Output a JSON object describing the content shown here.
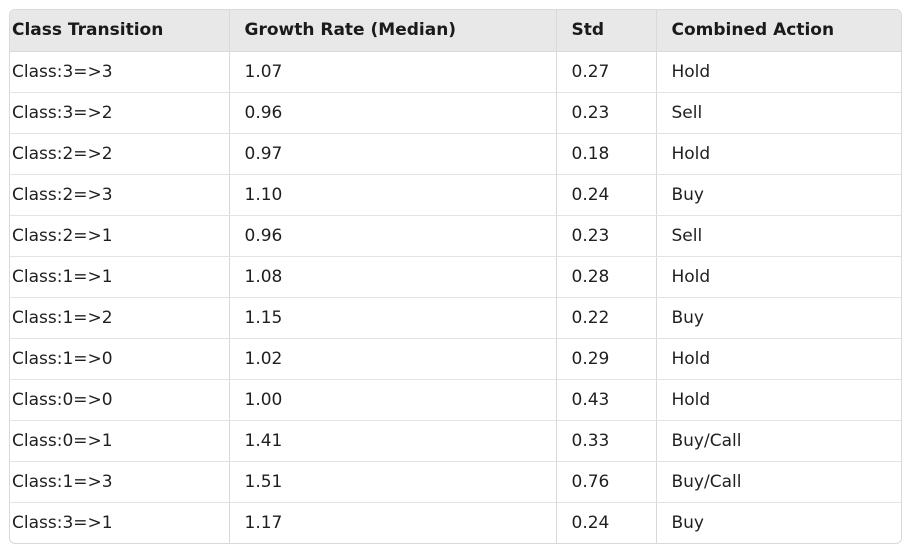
{
  "table": {
    "headers": [
      "Class Transition",
      "Growth Rate (Median)",
      "Std",
      "Combined Action"
    ],
    "rows": [
      [
        "Class:3=>3",
        "1.07",
        "0.27",
        "Hold"
      ],
      [
        "Class:3=>2",
        "0.96",
        "0.23",
        "Sell"
      ],
      [
        "Class:2=>2",
        "0.97",
        "0.18",
        "Hold"
      ],
      [
        "Class:2=>3",
        "1.10",
        "0.24",
        "Buy"
      ],
      [
        "Class:2=>1",
        "0.96",
        "0.23",
        "Sell"
      ],
      [
        "Class:1=>1",
        "1.08",
        "0.28",
        "Hold"
      ],
      [
        "Class:1=>2",
        "1.15",
        "0.22",
        "Buy"
      ],
      [
        "Class:1=>0",
        "1.02",
        "0.29",
        "Hold"
      ],
      [
        "Class:0=>0",
        "1.00",
        "0.43",
        "Hold"
      ],
      [
        "Class:0=>1",
        "1.41",
        "0.33",
        "Buy/Call"
      ],
      [
        "Class:1=>3",
        "1.51",
        "0.76",
        "Buy/Call"
      ],
      [
        "Class:3=>1",
        "1.17",
        "0.24",
        "Buy"
      ]
    ]
  },
  "colors": {
    "header_bg": "#e8e8e8",
    "border": "#d9d9d9",
    "text": "#1f1f1f"
  }
}
